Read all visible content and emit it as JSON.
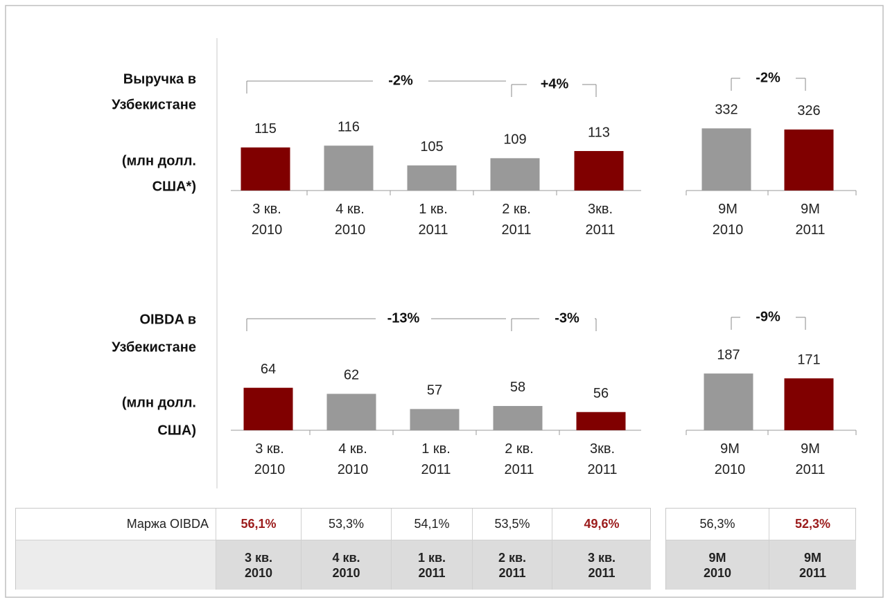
{
  "chart_data": [
    {
      "type": "bar",
      "row_label": [
        "Выручка в",
        "Узбекистане",
        "(млн долл.",
        "США*)"
      ],
      "categories": [
        [
          "3 кв.",
          "2010"
        ],
        [
          "4 кв.",
          "2010"
        ],
        [
          "1 кв.",
          "2011"
        ],
        [
          "2 кв.",
          "2011"
        ],
        [
          "3кв.",
          "2011"
        ]
      ],
      "values": [
        115,
        116,
        105,
        109,
        113
      ],
      "colors": [
        "#800000",
        "#999999",
        "#999999",
        "#999999",
        "#800000"
      ],
      "ylim": [
        91,
        140
      ],
      "annotations": [
        "-2%",
        "+4%"
      ]
    },
    {
      "type": "bar",
      "categories": [
        [
          "9M",
          "2010"
        ],
        [
          "9M",
          "2011"
        ]
      ],
      "values": [
        332,
        326
      ],
      "colors": [
        "#999999",
        "#800000"
      ],
      "ylim": [
        0,
        470
      ],
      "annotations": [
        "-2%"
      ]
    },
    {
      "type": "bar",
      "row_label": [
        "OIBDA в",
        "Узбекистане",
        "(млн долл.",
        "США)"
      ],
      "categories": [
        [
          "3 кв.",
          "2010"
        ],
        [
          "4 кв.",
          "2010"
        ],
        [
          "1 кв.",
          "2011"
        ],
        [
          "2 кв.",
          "2011"
        ],
        [
          "3кв.",
          "2011"
        ]
      ],
      "values": [
        64,
        62,
        57,
        58,
        56
      ],
      "colors": [
        "#800000",
        "#999999",
        "#999999",
        "#999999",
        "#800000"
      ],
      "ylim": [
        50,
        79
      ],
      "annotations": [
        "-13%",
        "-3%"
      ]
    },
    {
      "type": "bar",
      "categories": [
        [
          "9M",
          "2010"
        ],
        [
          "9M",
          "2011"
        ]
      ],
      "values": [
        187,
        171
      ],
      "colors": [
        "#999999",
        "#800000"
      ],
      "ylim": [
        0,
        290
      ],
      "annotations": [
        "-9%"
      ]
    }
  ],
  "table": {
    "label": "Маржа OIBDA",
    "cells": [
      {
        "text": "56,1%",
        "color": "#9b1b1b"
      },
      {
        "text": "53,3%"
      },
      {
        "text": "54,1%"
      },
      {
        "text": "53,5%"
      },
      {
        "text": "49,6%",
        "color": "#9b1b1b"
      },
      {
        "text": "56,3%"
      },
      {
        "text": "52,3%",
        "color": "#9b1b1b"
      }
    ],
    "periods": [
      [
        "3 кв.",
        "2010"
      ],
      [
        "4 кв.",
        "2010"
      ],
      [
        "1 кв.",
        "2011"
      ],
      [
        "2 кв.",
        "2011"
      ],
      [
        "3 кв.",
        "2011"
      ],
      [
        "9M",
        "2010"
      ],
      [
        "9M",
        "2011"
      ]
    ]
  }
}
